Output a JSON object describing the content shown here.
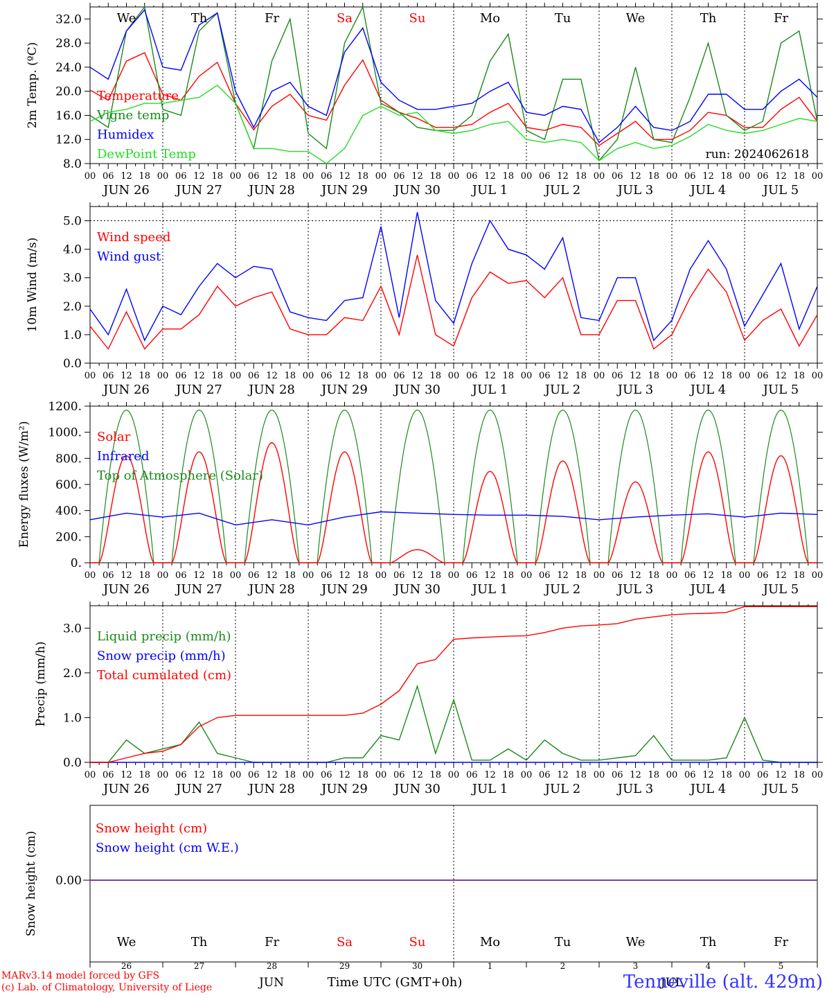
{
  "run_label": "run: 2024062618",
  "colors": {
    "red": "#ff0000",
    "blue": "#0000ff",
    "green": "#1a8a1a",
    "lightgreen": "#22dd22",
    "purple": "#7f3f9f",
    "axis": "#000000"
  },
  "days": {
    "short": [
      "We",
      "Th",
      "Fr",
      "Sa",
      "Su",
      "Mo",
      "Tu",
      "We",
      "Th",
      "Fr"
    ],
    "weekend_flags": [
      false,
      false,
      false,
      true,
      true,
      false,
      false,
      false,
      false,
      false
    ],
    "dates": [
      "JUN 26",
      "JUN 27",
      "JUN 28",
      "JUN 29",
      "JUN 30",
      "JUL  1",
      "JUL  2",
      "JUL  3",
      "JUL  4",
      "JUL  5"
    ],
    "day_numbers": [
      "26",
      "27",
      "28",
      "29",
      "30",
      "1",
      "2",
      "3",
      "4",
      "5"
    ],
    "hour_ticks": [
      "00",
      "06",
      "12",
      "18"
    ],
    "final_tick": "00"
  },
  "footer": {
    "model": "MARv3.14 model forced by GFS",
    "credit": "(c) Lab. of Climatology, University of Liege",
    "month_jun": "JUN",
    "month_jul": "JUL",
    "time_label": "Time UTC (GMT+0h)",
    "station": "Tenneville (alt. 429m)"
  },
  "chart_data": [
    {
      "type": "line",
      "ylabel": "2m Temp. (ºC)",
      "ylim": [
        8,
        34
      ],
      "yticks": [
        "8.0",
        "12.0",
        "16.0",
        "20.0",
        "24.0",
        "28.0",
        "32.0"
      ],
      "x_hours": [
        0,
        6,
        12,
        18,
        24,
        30,
        36,
        42,
        48,
        54,
        60,
        66,
        72,
        78,
        84,
        90,
        96,
        102,
        108,
        114,
        120,
        126,
        132,
        138,
        144,
        150,
        156,
        162,
        168,
        174,
        180,
        186,
        192,
        198,
        204,
        210,
        216,
        222,
        228,
        234,
        240
      ],
      "series": [
        {
          "name": "Temperature",
          "color": "red",
          "values": [
            20.2,
            18.5,
            25.0,
            26.4,
            19.5,
            18.5,
            22.5,
            24.8,
            18.0,
            13.6,
            17.5,
            19.5,
            16.0,
            15.2,
            21.0,
            25.2,
            18.5,
            16.5,
            15.5,
            14.0,
            14.0,
            14.5,
            16.5,
            18.0,
            14.0,
            13.5,
            14.5,
            14.0,
            11.0,
            13.0,
            15.0,
            12.0,
            12.0,
            13.5,
            16.5,
            16.0,
            14.0,
            14.0,
            17.0,
            19.0,
            15.0
          ]
        },
        {
          "name": "Vigne temp",
          "color": "green",
          "values": [
            16.0,
            14.0,
            30.0,
            34.0,
            17.0,
            16.0,
            30.0,
            33.0,
            18.0,
            10.5,
            25.0,
            32.0,
            13.0,
            10.5,
            28.0,
            34.0,
            18.0,
            16.5,
            14.0,
            13.5,
            13.5,
            16.0,
            25.0,
            29.5,
            13.5,
            12.0,
            22.0,
            22.0,
            8.5,
            12.0,
            24.0,
            12.0,
            11.5,
            19.0,
            28.0,
            16.0,
            13.5,
            15.0,
            28.0,
            30.0,
            15.0
          ]
        },
        {
          "name": "Humidex",
          "color": "blue",
          "values": [
            24.0,
            22.0,
            30.0,
            33.5,
            24.0,
            23.5,
            31.0,
            33.0,
            20.0,
            14.0,
            20.0,
            21.5,
            17.5,
            16.0,
            26.5,
            30.5,
            21.5,
            18.5,
            17.0,
            17.0,
            17.5,
            18.0,
            20.0,
            21.5,
            16.5,
            16.0,
            17.5,
            17.0,
            11.5,
            14.0,
            17.5,
            14.0,
            13.5,
            15.0,
            19.5,
            19.5,
            17.0,
            17.0,
            20.0,
            22.0,
            19.0
          ]
        },
        {
          "name": "DewPoint Temp",
          "color": "lightgreen",
          "values": [
            15.0,
            16.5,
            17.0,
            18.0,
            18.0,
            18.5,
            19.0,
            21.0,
            18.0,
            10.5,
            10.5,
            10.0,
            10.0,
            8.0,
            10.5,
            16.0,
            17.5,
            16.0,
            16.5,
            13.5,
            13.0,
            13.5,
            14.5,
            15.0,
            12.0,
            11.5,
            12.0,
            11.5,
            8.5,
            10.5,
            11.5,
            10.5,
            11.0,
            12.5,
            14.5,
            13.5,
            13.0,
            13.5,
            14.5,
            15.5,
            15.0
          ]
        }
      ]
    },
    {
      "type": "line",
      "ylabel": "10m Wind (m/s)",
      "ylim": [
        0,
        5.5
      ],
      "yticks": [
        "0.0",
        "1.0",
        "2.0",
        "3.0",
        "4.0",
        "5.0"
      ],
      "refline": 5.0,
      "x_hours": [
        0,
        6,
        12,
        18,
        24,
        30,
        36,
        42,
        48,
        54,
        60,
        66,
        72,
        78,
        84,
        90,
        96,
        102,
        108,
        114,
        120,
        126,
        132,
        138,
        144,
        150,
        156,
        162,
        168,
        174,
        180,
        186,
        192,
        198,
        204,
        210,
        216,
        222,
        228,
        234,
        240
      ],
      "series": [
        {
          "name": "Wind speed",
          "color": "red",
          "values": [
            1.3,
            0.5,
            1.8,
            0.5,
            1.2,
            1.2,
            1.7,
            2.7,
            2.0,
            2.3,
            2.5,
            1.2,
            1.0,
            1.0,
            1.6,
            1.5,
            2.7,
            1.0,
            3.8,
            1.0,
            0.6,
            2.3,
            3.2,
            2.8,
            2.9,
            2.3,
            3.0,
            1.0,
            1.0,
            2.2,
            2.2,
            0.5,
            1.0,
            2.3,
            3.3,
            2.5,
            0.8,
            1.5,
            1.9,
            0.6,
            1.7
          ]
        },
        {
          "name": "Wind gust",
          "color": "blue",
          "values": [
            1.9,
            1.0,
            2.6,
            0.8,
            2.0,
            1.7,
            2.7,
            3.5,
            3.0,
            3.4,
            3.3,
            1.8,
            1.6,
            1.5,
            2.2,
            2.3,
            4.8,
            1.6,
            5.3,
            2.2,
            1.4,
            3.5,
            5.0,
            4.0,
            3.8,
            3.3,
            4.4,
            1.6,
            1.5,
            3.0,
            3.0,
            0.8,
            1.5,
            3.3,
            4.3,
            3.3,
            1.3,
            2.4,
            3.5,
            1.2,
            2.7
          ]
        }
      ]
    },
    {
      "type": "line",
      "ylabel": "Energy fluxes (W/m²)",
      "ylim": [
        0,
        1200
      ],
      "yticks": [
        "0.",
        "200.",
        "400.",
        "600.",
        "800.",
        "1000.",
        "1200."
      ],
      "toa_peak": 1170,
      "solar_peaks": [
        820,
        850,
        920,
        850,
        100,
        700,
        780,
        620,
        850,
        820
      ],
      "series": [
        {
          "name": "Solar",
          "color": "red"
        },
        {
          "name": "Infrared",
          "color": "blue",
          "x_hours": [
            0,
            12,
            24,
            36,
            48,
            60,
            72,
            84,
            96,
            108,
            120,
            132,
            144,
            156,
            168,
            180,
            192,
            204,
            216,
            228,
            240
          ],
          "values": [
            330,
            380,
            350,
            380,
            290,
            330,
            290,
            350,
            390,
            380,
            370,
            365,
            365,
            355,
            330,
            350,
            365,
            375,
            350,
            380,
            370
          ]
        },
        {
          "name": "Top of Atmosphere (Solar)",
          "color": "green"
        }
      ]
    },
    {
      "type": "line",
      "ylabel": "Precip (mm/h)",
      "ylim": [
        0,
        3.5
      ],
      "yticks": [
        "0.0",
        "1.0",
        "2.0",
        "3.0"
      ],
      "x_hours": [
        0,
        6,
        12,
        18,
        24,
        30,
        36,
        42,
        48,
        54,
        60,
        66,
        72,
        78,
        84,
        90,
        96,
        102,
        108,
        114,
        120,
        126,
        132,
        138,
        144,
        150,
        156,
        162,
        168,
        174,
        180,
        186,
        192,
        198,
        204,
        210,
        216,
        222,
        228,
        234,
        240
      ],
      "series": [
        {
          "name": "Liquid precip (mm/h)",
          "color": "green",
          "values": [
            0,
            0,
            0.5,
            0.2,
            0.3,
            0.4,
            0.9,
            0.2,
            0.1,
            0,
            0,
            0,
            0,
            0,
            0.1,
            0.1,
            0.6,
            0.5,
            1.7,
            0.2,
            1.4,
            0.05,
            0.05,
            0.3,
            0.05,
            0.5,
            0.2,
            0.05,
            0.05,
            0.1,
            0.15,
            0.6,
            0.05,
            0.05,
            0.05,
            0.1,
            1.0,
            0.05,
            0,
            0,
            0
          ]
        },
        {
          "name": "Snow precip (mm/h)",
          "color": "blue",
          "values": [
            0,
            0,
            0,
            0,
            0,
            0,
            0,
            0,
            0,
            0,
            0,
            0,
            0,
            0,
            0,
            0,
            0,
            0,
            0,
            0,
            0,
            0,
            0,
            0,
            0,
            0,
            0,
            0,
            0,
            0,
            0,
            0,
            0,
            0,
            0,
            0,
            0,
            0,
            0,
            0,
            0
          ]
        },
        {
          "name": "Total cumulated (cm)",
          "color": "red",
          "values": [
            0,
            0,
            0.1,
            0.2,
            0.25,
            0.4,
            0.8,
            1.0,
            1.05,
            1.05,
            1.05,
            1.05,
            1.05,
            1.05,
            1.05,
            1.1,
            1.3,
            1.6,
            2.2,
            2.3,
            2.75,
            2.78,
            2.8,
            2.82,
            2.83,
            2.9,
            3.0,
            3.05,
            3.07,
            3.1,
            3.2,
            3.25,
            3.3,
            3.32,
            3.33,
            3.35,
            3.48,
            3.48,
            3.48,
            3.48,
            3.48
          ]
        }
      ]
    },
    {
      "type": "line",
      "ylabel": "Snow height (cm)",
      "yticks": [
        "0.00"
      ],
      "series": [
        {
          "name": "Snow height (cm)",
          "color": "red",
          "values": [
            0,
            0
          ]
        },
        {
          "name": "Snow height (cm W.E.)",
          "color": "blue",
          "values": [
            0,
            0
          ]
        }
      ]
    }
  ]
}
